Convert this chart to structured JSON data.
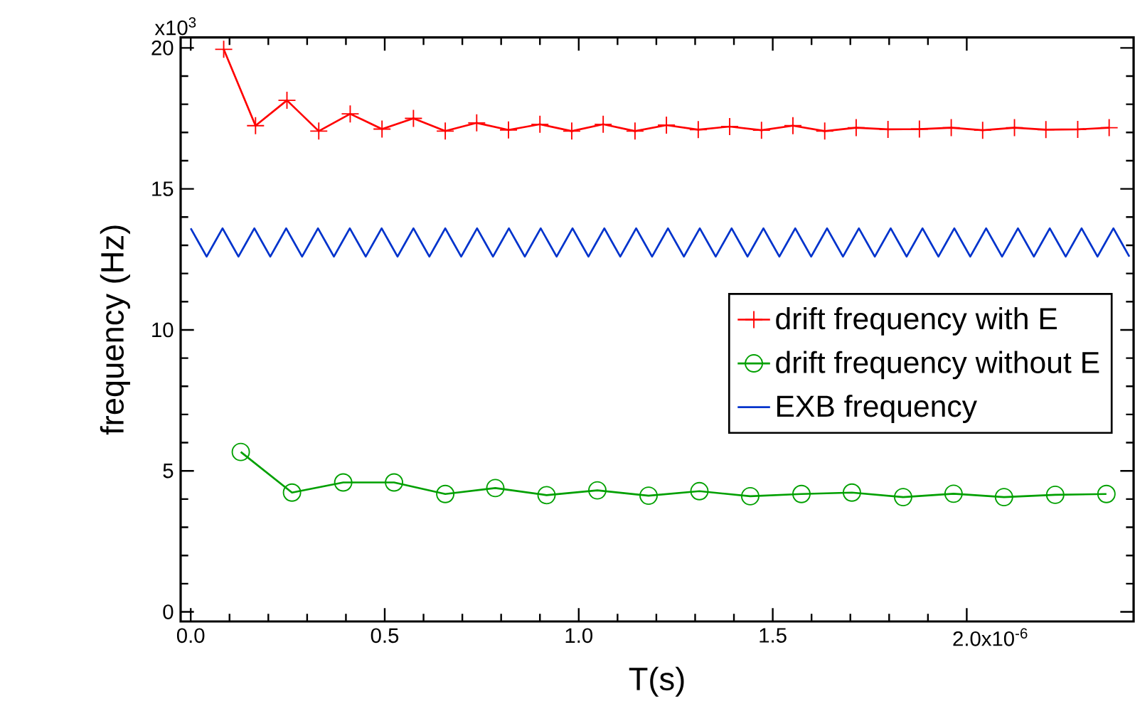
{
  "chart_data": {
    "type": "line",
    "xlabel": "T(s)",
    "ylabel": "frequency (Hz)",
    "annotations": [
      "x10$^{-6}$",
      "x10$^{3}$"
    ],
    "xlim": [
      -0.026,
      2.43
    ],
    "ylim": [
      -0.34,
      20.37
    ],
    "xticks": [
      {
        "value": 0,
        "label": "0.0"
      },
      {
        "value": 0.5,
        "label": "0.5"
      },
      {
        "value": 1.0,
        "label": "1.0"
      },
      {
        "value": 1.5,
        "label": "1.5"
      },
      {
        "value": 2.0,
        "label": "2.0"
      }
    ],
    "yticks": [
      0,
      5,
      10,
      15,
      20
    ],
    "grid": false,
    "legend": "right",
    "series": [
      {
        "name": "drift frequency with E",
        "color": "#ff0000",
        "marker": "cross",
        "x": [
          0.085,
          0.167,
          0.248,
          0.33,
          0.411,
          0.493,
          0.574,
          0.656,
          0.737,
          0.819,
          0.9,
          0.982,
          1.063,
          1.145,
          1.226,
          1.308,
          1.389,
          1.471,
          1.552,
          1.634,
          1.715,
          1.797,
          1.878,
          1.96,
          2.041,
          2.123,
          2.204,
          2.286,
          2.367
        ],
        "values": [
          19.95,
          17.24,
          18.14,
          17.05,
          17.66,
          17.12,
          17.5,
          17.05,
          17.34,
          17.09,
          17.29,
          17.05,
          17.29,
          17.05,
          17.26,
          17.1,
          17.21,
          17.08,
          17.24,
          17.05,
          17.17,
          17.11,
          17.12,
          17.17,
          17.08,
          17.17,
          17.1,
          17.11,
          17.17
        ]
      },
      {
        "name": "drift frequency without E",
        "color": "#00a000",
        "marker": "circle",
        "x": [
          0.129,
          0.261,
          0.393,
          0.524,
          0.656,
          0.785,
          0.917,
          1.048,
          1.18,
          1.311,
          1.442,
          1.574,
          1.704,
          1.836,
          1.966,
          2.096,
          2.228,
          2.36
        ],
        "values": [
          5.67,
          4.23,
          4.59,
          4.59,
          4.18,
          4.39,
          4.14,
          4.31,
          4.12,
          4.28,
          4.1,
          4.18,
          4.23,
          4.07,
          4.19,
          4.07,
          4.15,
          4.18
        ]
      },
      {
        "name": "EXB frequency",
        "color": "#0033cc",
        "marker": "none",
        "x": [
          0,
          0.0205,
          0.041,
          0.0615,
          0.082,
          0.1025,
          0.123,
          0.1435,
          0.164,
          0.1845,
          0.205,
          0.2255,
          0.246,
          0.2665,
          0.287,
          0.3075,
          0.328,
          0.3485,
          0.369,
          0.3895,
          0.41,
          0.4305,
          0.451,
          0.4715,
          0.492,
          0.5125,
          0.533,
          0.5535,
          0.574,
          0.5945,
          0.615,
          0.6355,
          0.656,
          0.6765,
          0.697,
          0.7175,
          0.738,
          0.7585,
          0.779,
          0.7995,
          0.82,
          0.8405,
          0.861,
          0.8815,
          0.902,
          0.9225,
          0.943,
          0.9635,
          0.984,
          1.0045,
          1.025,
          1.0455,
          1.066,
          1.0865,
          1.107,
          1.1275,
          1.148,
          1.1685,
          1.189,
          1.2095,
          1.23,
          1.2505,
          1.271,
          1.2915,
          1.312,
          1.3325,
          1.353,
          1.3735,
          1.394,
          1.4145,
          1.435,
          1.4555,
          1.476,
          1.4965,
          1.517,
          1.5375,
          1.558,
          1.5785,
          1.599,
          1.6195,
          1.64,
          1.6605,
          1.681,
          1.7015,
          1.722,
          1.7425,
          1.763,
          1.7835,
          1.804,
          1.8245,
          1.845,
          1.8655,
          1.886,
          1.9065,
          1.927,
          1.9475,
          1.968,
          1.9885,
          2.009,
          2.0295,
          2.05,
          2.0705,
          2.091,
          2.1115,
          2.132,
          2.1525,
          2.173,
          2.1935,
          2.214,
          2.2345,
          2.255,
          2.2755,
          2.296,
          2.3165,
          2.337,
          2.3575,
          2.378,
          2.3985,
          2.419
        ],
        "values": [
          13.6,
          13.1,
          12.6,
          13.1,
          13.6,
          13.1,
          12.6,
          13.1,
          13.6,
          13.1,
          12.6,
          13.1,
          13.6,
          13.1,
          12.6,
          13.1,
          13.6,
          13.1,
          12.6,
          13.1,
          13.6,
          13.1,
          12.6,
          13.1,
          13.6,
          13.1,
          12.6,
          13.1,
          13.6,
          13.1,
          12.6,
          13.1,
          13.6,
          13.1,
          12.6,
          13.1,
          13.6,
          13.1,
          12.6,
          13.1,
          13.6,
          13.1,
          12.6,
          13.1,
          13.6,
          13.1,
          12.6,
          13.1,
          13.6,
          13.1,
          12.6,
          13.1,
          13.6,
          13.1,
          12.6,
          13.1,
          13.6,
          13.1,
          12.6,
          13.1,
          13.6,
          13.1,
          12.6,
          13.1,
          13.6,
          13.1,
          12.6,
          13.1,
          13.6,
          13.1,
          12.6,
          13.1,
          13.6,
          13.1,
          12.6,
          13.1,
          13.6,
          13.1,
          12.6,
          13.1,
          13.6,
          13.1,
          12.6,
          13.1,
          13.6,
          13.1,
          12.6,
          13.1,
          13.6,
          13.1,
          12.6,
          13.1,
          13.6,
          13.1,
          12.6,
          13.1,
          13.6,
          13.1,
          12.6,
          13.1,
          13.6,
          13.1,
          12.6,
          13.1,
          13.6,
          13.1,
          12.6,
          13.1,
          13.6,
          13.1,
          12.6,
          13.1,
          13.6,
          13.1,
          12.6,
          13.1,
          13.6,
          13.1,
          12.6
        ]
      }
    ]
  }
}
